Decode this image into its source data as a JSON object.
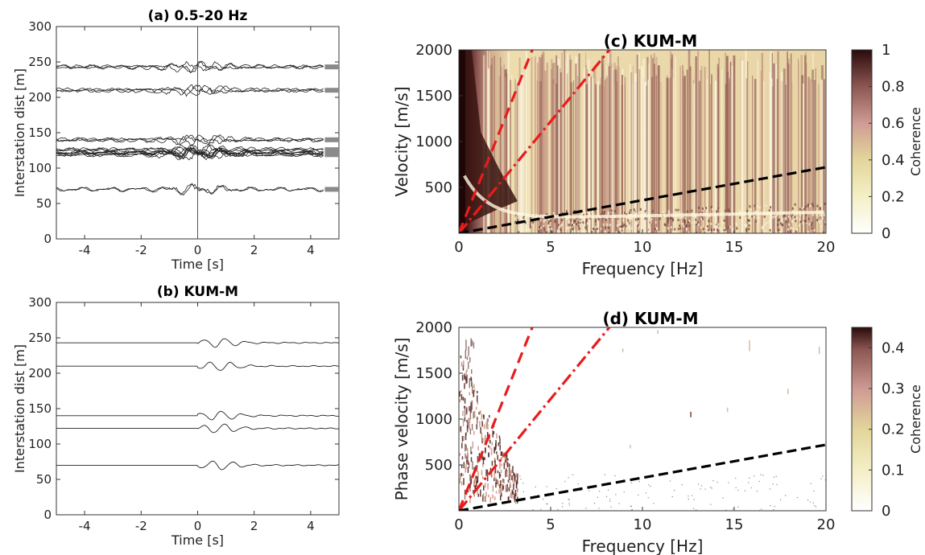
{
  "chart_data": [
    {
      "id": "a",
      "type": "line",
      "title": "(a) 0.5-20 Hz",
      "xlabel": "Time [s]",
      "ylabel": "Interstation dist [m]",
      "xlim": [
        -5,
        5
      ],
      "ylim": [
        0,
        300
      ],
      "xticks": [
        "-4",
        "-2",
        "0",
        "2",
        "4"
      ],
      "yticks": [
        "0",
        "50",
        "100",
        "150",
        "200",
        "250",
        "300"
      ],
      "trace_offsets": [
        243,
        210,
        140,
        126,
        122,
        119,
        70
      ],
      "stack_counts": [
        3,
        3,
        3,
        3,
        4,
        3,
        2
      ]
    },
    {
      "id": "b",
      "type": "line",
      "title": "(b) KUM-M",
      "xlabel": "Time [s]",
      "ylabel": "Interstation dist [m]",
      "xlim": [
        -5,
        5
      ],
      "ylim": [
        0,
        300
      ],
      "xticks": [
        "-4",
        "-2",
        "0",
        "2",
        "4"
      ],
      "yticks": [
        "0",
        "50",
        "100",
        "150",
        "200",
        "250",
        "300"
      ],
      "trace_offsets": [
        243,
        210,
        140,
        122,
        70
      ],
      "onset_time": 0
    },
    {
      "id": "c",
      "type": "heatmap",
      "title": "(c) KUM-M",
      "xlabel": "Frequency [Hz]",
      "ylabel": "Velocity [m/s]",
      "xlim": [
        0,
        20
      ],
      "ylim": [
        0,
        2000
      ],
      "xticks": [
        "0",
        "5",
        "10",
        "15",
        "20"
      ],
      "yticks": [
        "500",
        "1000",
        "1500",
        "2000"
      ],
      "colorbar": {
        "label": "Coherence",
        "range": [
          0,
          1
        ],
        "ticks": [
          "0",
          "0.2",
          "0.4",
          "0.6",
          "0.8",
          "1"
        ]
      },
      "lines": [
        {
          "style": "dashed",
          "color": "#e81c1c",
          "points": [
            [
              0,
              0
            ],
            [
              4,
              2000
            ]
          ]
        },
        {
          "style": "dashdot",
          "color": "#e81c1c",
          "points": [
            [
              0,
              0
            ],
            [
              8.2,
              2000
            ]
          ]
        },
        {
          "style": "dashed",
          "color": "#000000",
          "points": [
            [
              0,
              0
            ],
            [
              20,
              720
            ]
          ]
        }
      ]
    },
    {
      "id": "d",
      "type": "heatmap",
      "title": "(d) KUM-M",
      "xlabel": "Frequency [Hz]",
      "ylabel": "Phase velocity [m/s]",
      "xlim": [
        0,
        20
      ],
      "ylim": [
        0,
        2000
      ],
      "xticks": [
        "0",
        "5",
        "10",
        "15",
        "20"
      ],
      "yticks": [
        "500",
        "1000",
        "1500",
        "2000"
      ],
      "colorbar": {
        "label": "Coherence",
        "range": [
          0,
          0.45
        ],
        "ticks": [
          "0",
          "0.1",
          "0.2",
          "0.3",
          "0.4"
        ]
      },
      "lines": [
        {
          "style": "dashed",
          "color": "#e81c1c",
          "points": [
            [
              0,
              0
            ],
            [
              4,
              2000
            ]
          ]
        },
        {
          "style": "dashdot",
          "color": "#e81c1c",
          "points": [
            [
              0,
              0
            ],
            [
              8.2,
              2000
            ]
          ]
        },
        {
          "style": "dashed",
          "color": "#000000",
          "points": [
            [
              0,
              0
            ],
            [
              20,
              720
            ]
          ]
        }
      ]
    }
  ]
}
